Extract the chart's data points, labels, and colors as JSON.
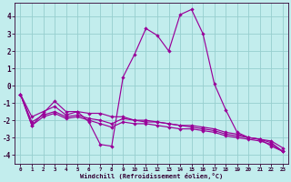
{
  "xlabel": "Windchill (Refroidissement éolien,°C)",
  "background_color": "#c2eded",
  "grid_color": "#96cece",
  "line_color": "#990099",
  "xlim_min": -0.5,
  "xlim_max": 23.5,
  "ylim_min": -4.5,
  "ylim_max": 4.8,
  "yticks": [
    -4,
    -3,
    -2,
    -1,
    0,
    1,
    2,
    3,
    4
  ],
  "xticks": [
    0,
    1,
    2,
    3,
    4,
    5,
    6,
    7,
    8,
    9,
    10,
    11,
    12,
    13,
    14,
    15,
    16,
    17,
    18,
    19,
    20,
    21,
    22,
    23
  ],
  "hours": [
    0,
    1,
    2,
    3,
    4,
    5,
    6,
    7,
    8,
    9,
    10,
    11,
    12,
    13,
    14,
    15,
    16,
    17,
    18,
    19,
    20,
    21,
    22,
    23
  ],
  "line1": [
    -0.5,
    -2.3,
    -1.6,
    -0.9,
    -1.5,
    -1.5,
    -2.1,
    -3.4,
    -3.5,
    0.5,
    1.8,
    3.3,
    2.9,
    2.0,
    4.1,
    4.4,
    3.0,
    0.1,
    -1.4,
    -2.7,
    -3.0,
    -3.1,
    -3.5,
    -3.8
  ],
  "line2": [
    -0.5,
    -1.8,
    -1.5,
    -1.2,
    -1.7,
    -1.5,
    -1.6,
    -1.6,
    -1.8,
    -1.8,
    -2.0,
    -2.0,
    -2.1,
    -2.2,
    -2.3,
    -2.4,
    -2.5,
    -2.6,
    -2.8,
    -2.9,
    -3.0,
    -3.1,
    -3.2,
    -3.6
  ],
  "line3": [
    -0.5,
    -2.1,
    -1.7,
    -1.5,
    -1.8,
    -1.7,
    -1.9,
    -2.0,
    -2.2,
    -1.9,
    -2.0,
    -2.1,
    -2.1,
    -2.2,
    -2.3,
    -2.3,
    -2.4,
    -2.5,
    -2.7,
    -2.8,
    -3.0,
    -3.1,
    -3.3,
    -3.8
  ],
  "line4": [
    -0.5,
    -2.3,
    -1.8,
    -1.6,
    -1.9,
    -1.8,
    -2.0,
    -2.2,
    -2.4,
    -2.1,
    -2.2,
    -2.2,
    -2.3,
    -2.4,
    -2.5,
    -2.5,
    -2.6,
    -2.7,
    -2.9,
    -3.0,
    -3.1,
    -3.2,
    -3.4,
    -3.8
  ]
}
